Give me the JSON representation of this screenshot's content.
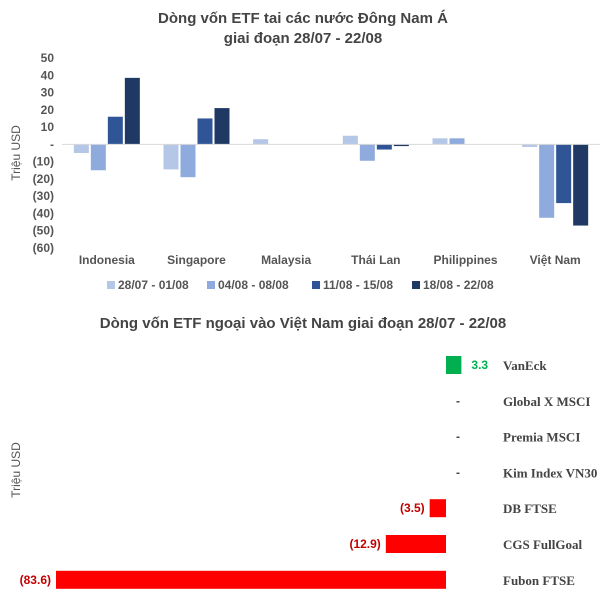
{
  "chart_data": [
    {
      "type": "bar",
      "title_line1": "Dòng vốn ETF tai các nước Đông Nam Á",
      "title_line2": "giai đoạn 28/07 - 22/08",
      "ylabel": "Triệu USD",
      "ylim": [
        -60,
        50
      ],
      "yticks": [
        50,
        40,
        30,
        20,
        10,
        0,
        -10,
        -20,
        -30,
        -40,
        -50,
        -60
      ],
      "ytick_labels": [
        "50",
        "40",
        "30",
        "20",
        "10",
        "-",
        "(10)",
        "(20)",
        "(30)",
        "(40)",
        "(50)",
        "(60)"
      ],
      "categories": [
        "Indonesia",
        "Singapore",
        "Malaysia",
        "Thái Lan",
        "Philippines",
        "Việt Nam"
      ],
      "legend_position": "bottom",
      "series": [
        {
          "name": "28/07 - 01/08",
          "color": "#b4c7e7",
          "values": [
            -5,
            -14.5,
            3,
            5,
            3.5,
            -1.5
          ]
        },
        {
          "name": "04/08 - 08/08",
          "color": "#8faadc",
          "values": [
            -15,
            -19,
            0,
            -9.5,
            3.5,
            -42.5
          ]
        },
        {
          "name": "11/08 - 15/08",
          "color": "#2f5597",
          "values": [
            16,
            15,
            0,
            -3,
            0,
            -34
          ]
        },
        {
          "name": "18/08 - 22/08",
          "color": "#1f3864",
          "values": [
            38.5,
            21,
            0,
            -1,
            0,
            -47
          ]
        }
      ]
    },
    {
      "type": "bar",
      "orientation": "horizontal",
      "title": "Dòng vốn ETF ngoại vào Việt Nam giai đoạn 28/07 - 22/08",
      "ylabel": "Triệu USD",
      "categories": [
        "VanEck",
        "Global X MSCI",
        "Premia MSCI",
        "Kim Index VN30",
        "DB FTSE",
        "CGS FullGoal",
        "Fubon FTSE"
      ],
      "values": [
        3.3,
        0,
        0,
        0,
        -3.5,
        -12.9,
        -83.6
      ],
      "data_labels": [
        "3.3",
        "-",
        "-",
        "-",
        "(3.5)",
        "(12.9)",
        "(83.6)"
      ],
      "positive_color": "#00b050",
      "negative_color": "#ff0000"
    }
  ]
}
